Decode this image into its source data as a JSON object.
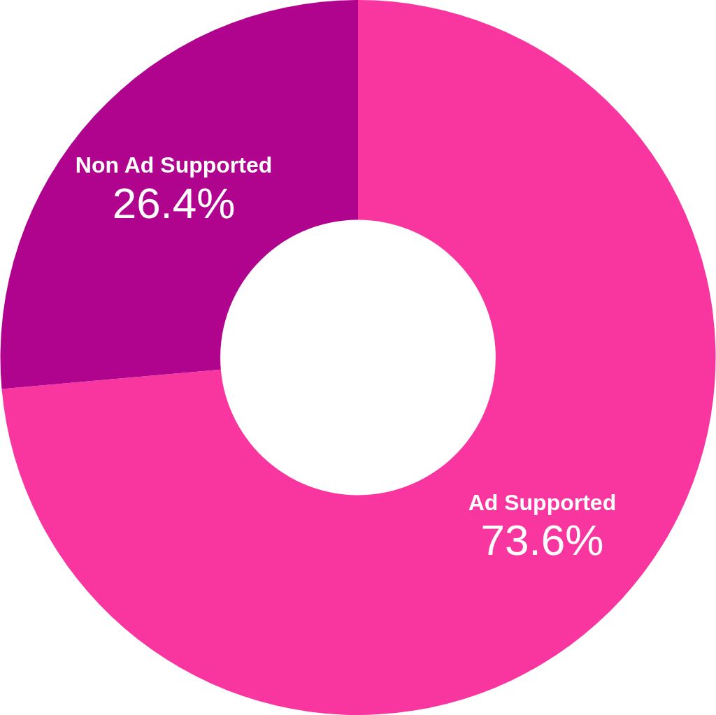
{
  "chart_data": {
    "type": "donut",
    "categories": [
      "Ad Supported",
      "Non Ad Supported"
    ],
    "values": [
      73.6,
      26.4
    ],
    "value_labels": [
      "73.6%",
      "26.4%"
    ],
    "colors": [
      "#f935a0",
      "#b0048f"
    ],
    "legend": false
  }
}
